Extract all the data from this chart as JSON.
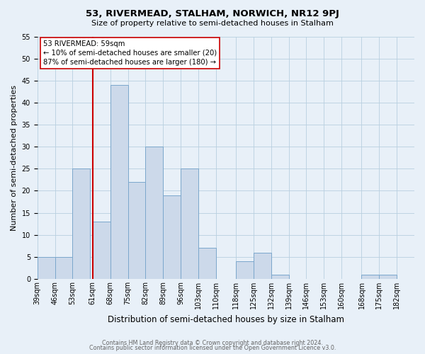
{
  "title": "53, RIVERMEAD, STALHAM, NORWICH, NR12 9PJ",
  "subtitle": "Size of property relative to semi-detached houses in Stalham",
  "xlabel": "Distribution of semi-detached houses by size in Stalham",
  "ylabel": "Number of semi-detached properties",
  "bin_labels": [
    "39sqm",
    "46sqm",
    "53sqm",
    "61sqm",
    "68sqm",
    "75sqm",
    "82sqm",
    "89sqm",
    "96sqm",
    "103sqm",
    "110sqm",
    "118sqm",
    "125sqm",
    "132sqm",
    "139sqm",
    "146sqm",
    "153sqm",
    "160sqm",
    "168sqm",
    "175sqm",
    "182sqm"
  ],
  "bin_left_edges": [
    39,
    46,
    53,
    61,
    68,
    75,
    82,
    89,
    96,
    103,
    110,
    118,
    125,
    132,
    139,
    146,
    153,
    160,
    168,
    175,
    182
  ],
  "bin_width": 7,
  "counts": [
    5,
    5,
    25,
    13,
    44,
    22,
    30,
    19,
    25,
    7,
    0,
    4,
    6,
    1,
    0,
    0,
    0,
    0,
    1,
    1,
    0
  ],
  "ylim": [
    0,
    55
  ],
  "yticks": [
    0,
    5,
    10,
    15,
    20,
    25,
    30,
    35,
    40,
    45,
    50,
    55
  ],
  "xlim_left": 39,
  "xlim_right": 189,
  "bar_facecolor": "#ccd9ea",
  "bar_edgecolor": "#7ba7cc",
  "grid_color": "#b8cfe0",
  "bg_color": "#e8f0f8",
  "plot_bg_color": "#e8f0f8",
  "reference_line_x": 61,
  "reference_line_color": "#cc0000",
  "annotation_title": "53 RIVERMEAD: 59sqm",
  "annotation_line1": "← 10% of semi-detached houses are smaller (20)",
  "annotation_line2": "87% of semi-detached houses are larger (180) →",
  "annotation_box_facecolor": "white",
  "annotation_box_edgecolor": "#cc0000",
  "title_fontsize": 9.5,
  "subtitle_fontsize": 8,
  "ylabel_fontsize": 8,
  "xlabel_fontsize": 8.5,
  "tick_fontsize": 7,
  "annotation_fontsize": 7.2,
  "footer1": "Contains HM Land Registry data © Crown copyright and database right 2024.",
  "footer2": "Contains public sector information licensed under the Open Government Licence v3.0.",
  "footer_fontsize": 5.8,
  "footer_color": "#666666"
}
